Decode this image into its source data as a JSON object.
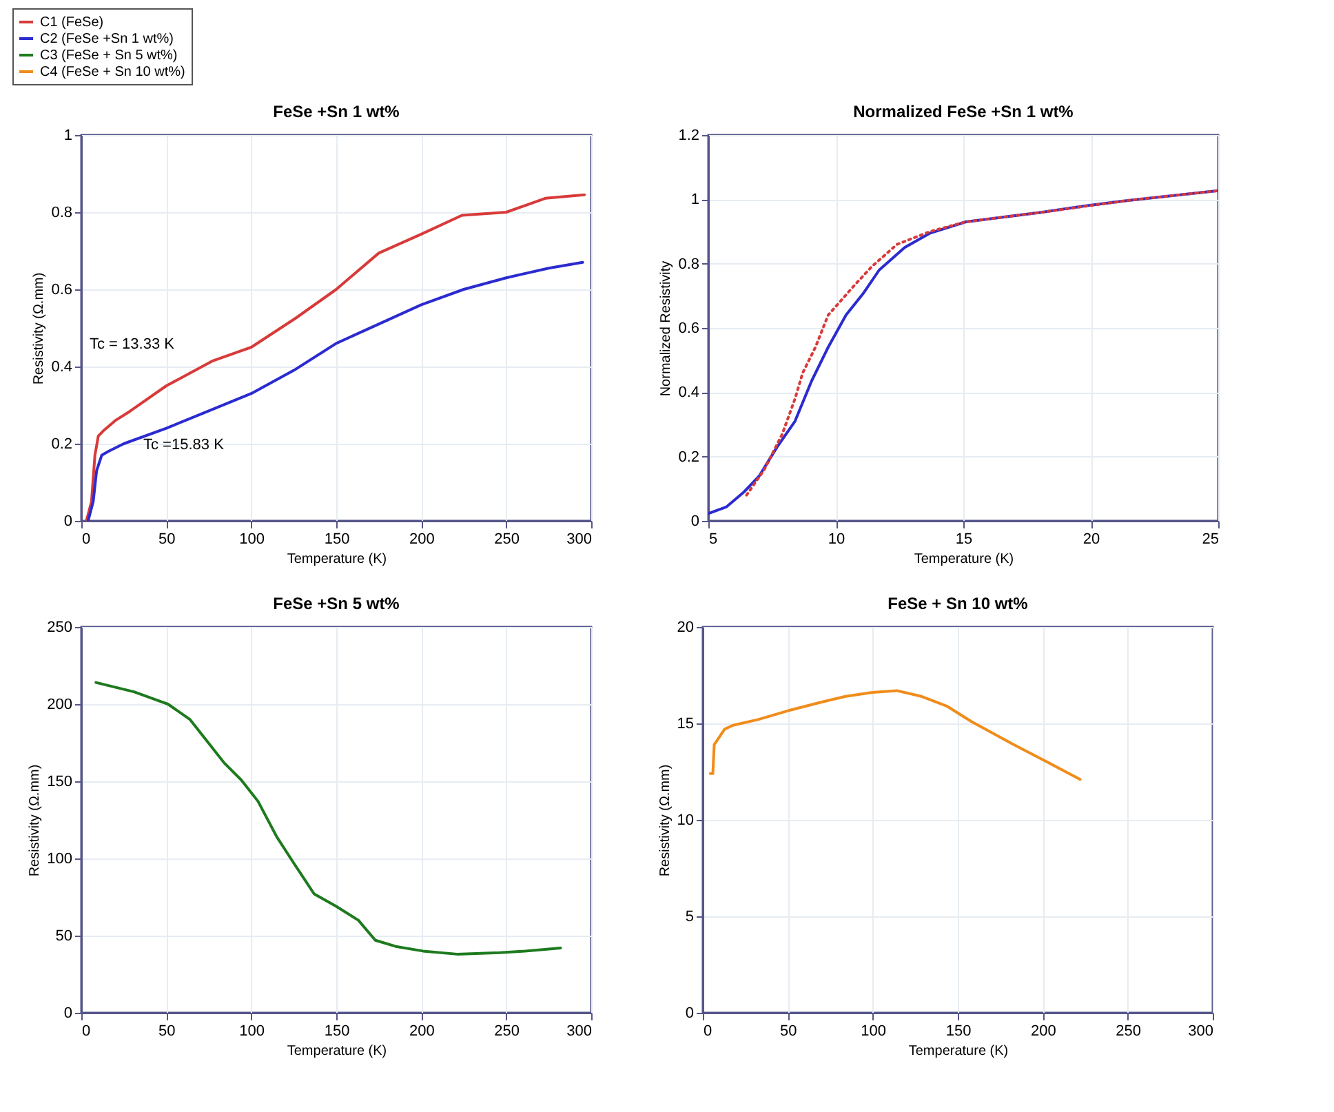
{
  "chart_data": [
    {
      "type": "line",
      "title": "FeSe +Sn 1 wt%",
      "xlabel": "Temperature (K)",
      "ylabel": "Resistivity (Ω.mm)",
      "xlim": [
        0,
        300
      ],
      "ylim": [
        0,
        1
      ],
      "xticks": [
        0,
        50,
        100,
        150,
        200,
        250,
        300
      ],
      "yticks": [
        0,
        0.2,
        0.4,
        0.6,
        0.8,
        1
      ],
      "grid": true,
      "legend": "top left",
      "line_style": "solid",
      "series": [
        {
          "name": "C1 (FeSe)",
          "color": "#d83a3a",
          "x": [
            3,
            6,
            8,
            10,
            13.33,
            20,
            28.6,
            50,
            77.5,
            100,
            126,
            150,
            175,
            200,
            224,
            250,
            273,
            296
          ],
          "values": [
            0,
            0.05,
            0.17,
            0.22,
            0.235,
            0.26,
            0.284,
            0.35,
            0.415,
            0.45,
            0.525,
            0.6,
            0.694,
            0.743,
            0.792,
            0.8,
            0.836,
            0.845
          ]
        },
        {
          "name": "C2 (FeSe +Sn 1 wt%)",
          "color": "#2b2bd0",
          "x": [
            4,
            7,
            9,
            12,
            15.83,
            25,
            50,
            75,
            100,
            125,
            150,
            175,
            200,
            225,
            250,
            275,
            295
          ],
          "values": [
            0,
            0.05,
            0.13,
            0.17,
            0.18,
            0.2,
            0.24,
            0.285,
            0.33,
            0.39,
            0.46,
            0.51,
            0.56,
            0.6,
            0.63,
            0.655,
            0.67
          ]
        }
      ],
      "annotations": [
        "Tc = 13.33 K",
        "Tc =15.83 K"
      ]
    },
    {
      "type": "line",
      "title": "Normalized FeSe +Sn 1 wt%",
      "xlabel": "Temperature (K)",
      "ylabel": "Normalized Resistivity",
      "xlim": [
        5,
        25
      ],
      "ylim": [
        0,
        1.2
      ],
      "xticks": [
        5,
        10,
        15,
        20,
        25
      ],
      "yticks": [
        0,
        0.2,
        0.4,
        0.6,
        0.8,
        1,
        1.2
      ],
      "grid": true,
      "series": [
        {
          "color": "#2b2bd0",
          "line_style": "solid",
          "x": [
            5,
            5.7,
            6.4,
            7.0,
            7.7,
            8.4,
            9.05,
            9.7,
            10.4,
            11.1,
            11.7,
            12.7,
            13.7,
            15.1,
            18.1,
            19.8,
            21.4,
            25
          ],
          "values": [
            0.023,
            0.043,
            0.09,
            0.14,
            0.23,
            0.31,
            0.435,
            0.54,
            0.64,
            0.71,
            0.78,
            0.85,
            0.895,
            0.93,
            0.96,
            0.98,
            0.996,
            1.027
          ]
        },
        {
          "color": "#d83a3a",
          "line_style": "dotted",
          "x": [
            6.5,
            7.2,
            7.9,
            8.4,
            8.7,
            9.2,
            9.7,
            10.7,
            11.4,
            12.4,
            13.7,
            15.1,
            18.1,
            21.4,
            25
          ],
          "values": [
            0.08,
            0.16,
            0.27,
            0.38,
            0.46,
            0.54,
            0.64,
            0.73,
            0.79,
            0.86,
            0.9,
            0.93,
            0.96,
            0.996,
            1.027
          ]
        }
      ]
    },
    {
      "type": "line",
      "title": "FeSe +Sn 5 wt%",
      "xlabel": "Temperature (K)",
      "ylabel": "Resistivity (Ω.mm)",
      "xlim": [
        0,
        300
      ],
      "ylim": [
        0,
        250
      ],
      "xticks": [
        0,
        50,
        100,
        150,
        200,
        250,
        300
      ],
      "yticks": [
        0,
        50,
        100,
        150,
        200,
        250
      ],
      "grid": true,
      "series": [
        {
          "name": "C3 (FeSe + Sn 5 wt%)",
          "color": "#1e7a1e",
          "line_style": "solid",
          "x": [
            8.6,
            31,
            51,
            64,
            74,
            84,
            94,
            104,
            115,
            125,
            137,
            150,
            163,
            173,
            185,
            201,
            221,
            246,
            261,
            282
          ],
          "values": [
            214,
            208,
            200,
            190,
            176,
            162,
            151,
            137,
            114,
            97,
            77,
            69,
            60,
            47,
            43,
            40,
            38,
            39,
            40,
            42
          ]
        }
      ]
    },
    {
      "type": "line",
      "title": "FeSe + Sn 10 wt%",
      "xlabel": "Temperature (K)",
      "ylabel": "Resistivity (Ω.mm)",
      "xlim": [
        0,
        300
      ],
      "ylim": [
        0,
        20
      ],
      "xticks": [
        0,
        50,
        100,
        150,
        200,
        250,
        300
      ],
      "yticks": [
        0,
        5,
        10,
        15,
        20
      ],
      "grid": true,
      "series": [
        {
          "name": "C4 (FeSe + Sn 10 wt%)",
          "color": "#f08c1a",
          "line_style": "solid",
          "x": [
            4.4,
            5.9,
            6.7,
            12.8,
            17.7,
            32.5,
            49.8,
            69.5,
            84,
            99,
            114,
            128.7,
            143.5,
            158,
            182.9,
            202.6,
            222
          ],
          "values": [
            12.4,
            12.4,
            13.9,
            14.7,
            14.9,
            15.2,
            15.65,
            16.1,
            16.4,
            16.6,
            16.7,
            16.4,
            15.9,
            15.1,
            13.9,
            13.0,
            12.1
          ]
        }
      ]
    }
  ]
}
